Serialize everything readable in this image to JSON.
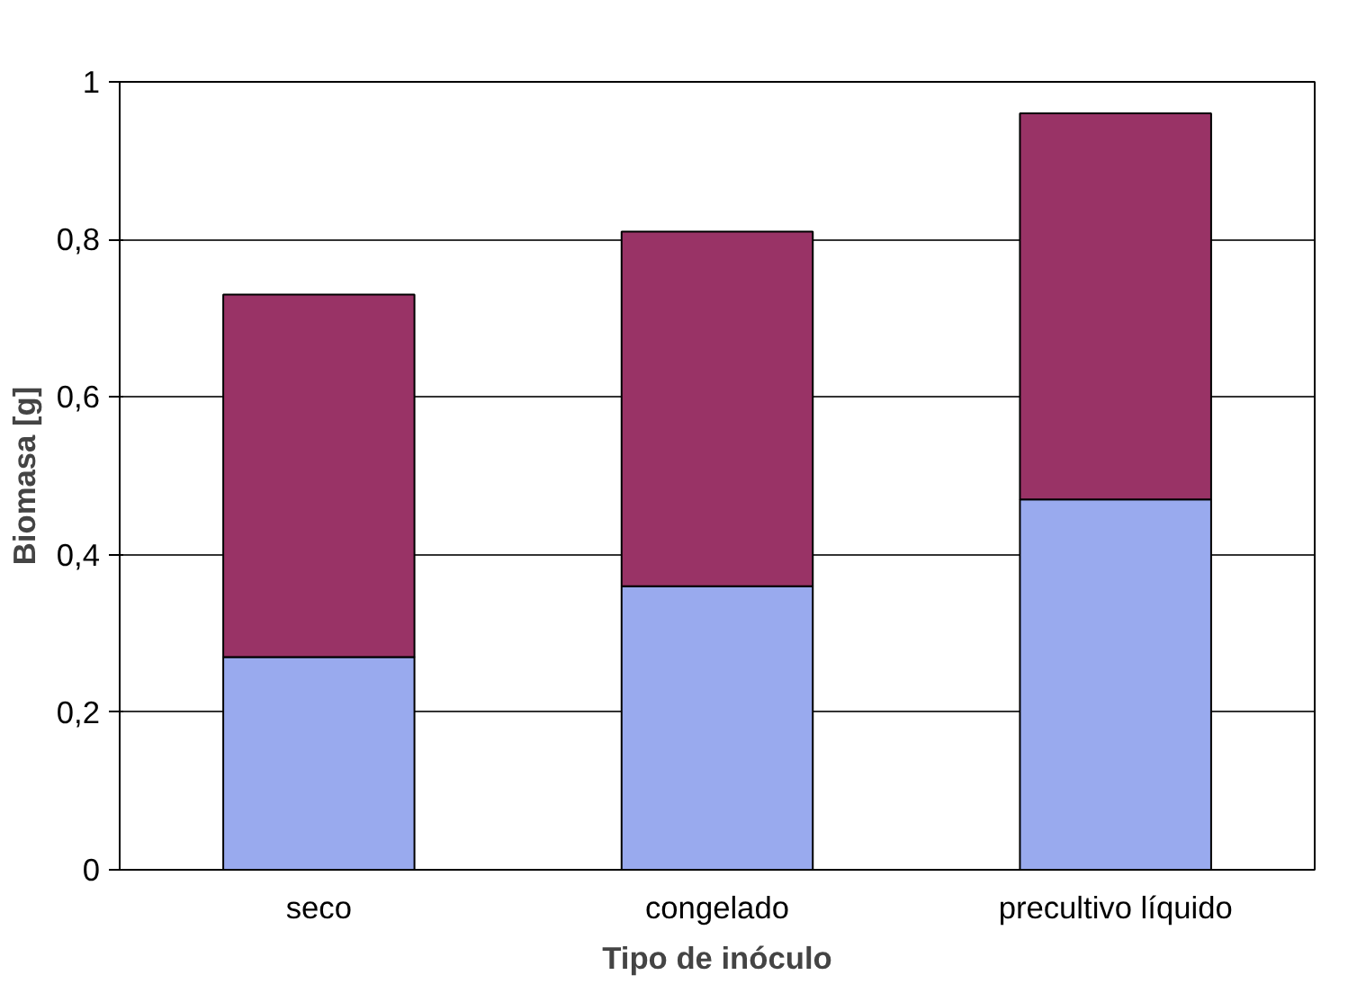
{
  "chart_data": {
    "type": "bar",
    "stacked": true,
    "xlabel": "Tipo de inóculo",
    "ylabel": "Biomasa [g]",
    "categories": [
      "seco",
      "congelado",
      "precultivo líquido"
    ],
    "series": [
      {
        "color": "#99aaee",
        "values": [
          0.27,
          0.36,
          0.47
        ]
      },
      {
        "color": "#993366",
        "values": [
          0.46,
          0.45,
          0.49
        ]
      }
    ],
    "ylim": [
      0,
      1
    ],
    "yticks": [
      0,
      {
        "value": 0.2,
        "label": "0,2"
      },
      {
        "value": 0.4,
        "label": "0,4"
      },
      {
        "value": 0.6,
        "label": "0,6"
      },
      {
        "value": 0.8,
        "label": "0,8"
      },
      1
    ],
    "grid": "y"
  }
}
